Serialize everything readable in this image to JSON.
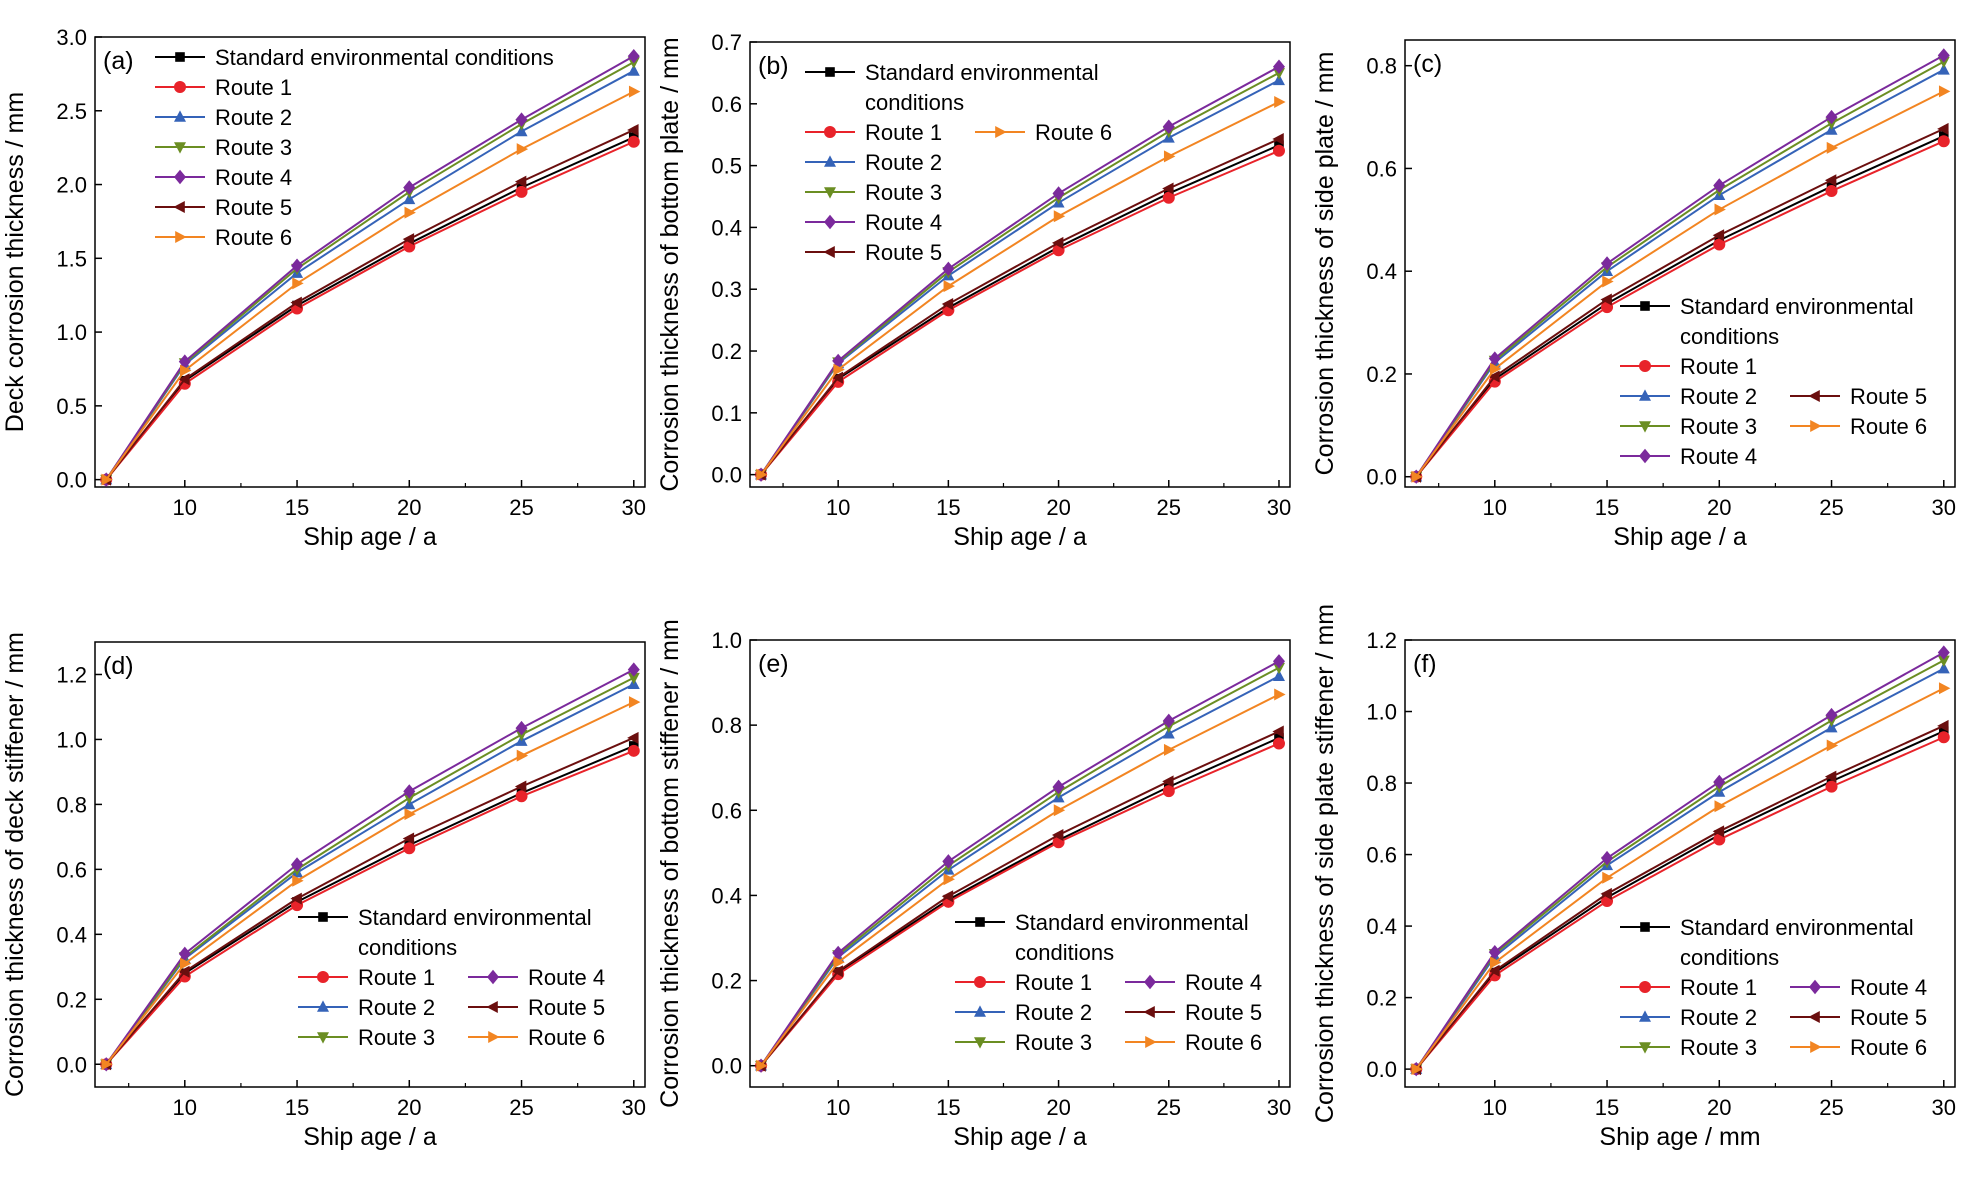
{
  "colors": {
    "standard": "#000000",
    "route1": "#e8232a",
    "route2": "#3563b8",
    "route3": "#6b8e23",
    "route4": "#7b2a9c",
    "route5": "#6b0f0f",
    "route6": "#f28522"
  },
  "chart_data": [
    {
      "type": "line",
      "panel_label": "(a)",
      "xlabel": "Ship age / a",
      "ylabel": "Deck corrosion thickness / mm",
      "xlim": [
        6,
        30.5
      ],
      "ylim": [
        -0.05,
        3.0
      ],
      "xticks": [
        10,
        15,
        20,
        25,
        30
      ],
      "yticks": [
        0.0,
        0.5,
        1.0,
        1.5,
        2.0,
        2.5,
        3.0
      ],
      "ytick_labels": [
        "0.0",
        "0.5",
        "1.0",
        "1.5",
        "2.0",
        "2.5",
        "3.0"
      ],
      "legend": "top-left",
      "x": [
        6.5,
        10,
        15,
        20,
        25,
        30
      ],
      "series": [
        {
          "name": "Standard environmental conditions",
          "color": "#000000",
          "marker": "square",
          "values": [
            0,
            0.67,
            1.18,
            1.6,
            1.98,
            2.32
          ]
        },
        {
          "name": "Route 1",
          "color": "#e8232a",
          "marker": "circle",
          "values": [
            0,
            0.65,
            1.16,
            1.58,
            1.95,
            2.29
          ]
        },
        {
          "name": "Route 2",
          "color": "#3563b8",
          "marker": "triangle-up",
          "values": [
            0,
            0.78,
            1.4,
            1.9,
            2.36,
            2.77
          ]
        },
        {
          "name": "Route 3",
          "color": "#6b8e23",
          "marker": "triangle-down",
          "values": [
            0,
            0.79,
            1.43,
            1.95,
            2.41,
            2.83
          ]
        },
        {
          "name": "Route 4",
          "color": "#7b2a9c",
          "marker": "diamond",
          "values": [
            0,
            0.8,
            1.45,
            1.98,
            2.44,
            2.87
          ]
        },
        {
          "name": "Route 5",
          "color": "#6b0f0f",
          "marker": "triangle-left",
          "values": [
            0,
            0.68,
            1.2,
            1.63,
            2.02,
            2.37
          ]
        },
        {
          "name": "Route 6",
          "color": "#f28522",
          "marker": "triangle-right",
          "values": [
            0,
            0.74,
            1.33,
            1.81,
            2.24,
            2.63
          ]
        }
      ]
    },
    {
      "type": "line",
      "panel_label": "(b)",
      "xlabel": "Ship age / a",
      "ylabel": "Corrosion thickness of bottom plate / mm",
      "xlim": [
        6,
        30.5
      ],
      "ylim": [
        -0.02,
        0.7
      ],
      "xticks": [
        10,
        15,
        20,
        25,
        30
      ],
      "yticks": [
        0.0,
        0.1,
        0.2,
        0.3,
        0.4,
        0.5,
        0.6,
        0.7
      ],
      "ytick_labels": [
        "0.0",
        "0.1",
        "0.2",
        "0.3",
        "0.4",
        "0.5",
        "0.6",
        "0.7"
      ],
      "legend": "top-left",
      "x": [
        6.5,
        10,
        15,
        20,
        25,
        30
      ],
      "series": [
        {
          "name": "Standard environmental conditions",
          "color": "#000000",
          "marker": "square",
          "values": [
            0,
            0.155,
            0.27,
            0.368,
            0.455,
            0.533
          ]
        },
        {
          "name": "Route 1",
          "color": "#e8232a",
          "marker": "circle",
          "values": [
            0,
            0.15,
            0.266,
            0.363,
            0.448,
            0.524
          ]
        },
        {
          "name": "Route 2",
          "color": "#3563b8",
          "marker": "triangle-up",
          "values": [
            0,
            0.18,
            0.322,
            0.44,
            0.545,
            0.638
          ]
        },
        {
          "name": "Route 3",
          "color": "#6b8e23",
          "marker": "triangle-down",
          "values": [
            0,
            0.182,
            0.328,
            0.448,
            0.555,
            0.65
          ]
        },
        {
          "name": "Route 4",
          "color": "#7b2a9c",
          "marker": "diamond",
          "values": [
            0,
            0.184,
            0.333,
            0.455,
            0.563,
            0.66
          ]
        },
        {
          "name": "Route 5",
          "color": "#6b0f0f",
          "marker": "triangle-left",
          "values": [
            0,
            0.157,
            0.276,
            0.375,
            0.463,
            0.543
          ]
        },
        {
          "name": "Route 6",
          "color": "#f28522",
          "marker": "triangle-right",
          "values": [
            0,
            0.17,
            0.305,
            0.418,
            0.515,
            0.603
          ]
        }
      ]
    },
    {
      "type": "line",
      "panel_label": "(c)",
      "xlabel": "Ship age / a",
      "ylabel": "Corrosion thickness of side plate / mm",
      "xlim": [
        6,
        30.5
      ],
      "ylim": [
        -0.02,
        0.85
      ],
      "xticks": [
        10,
        15,
        20,
        25,
        30
      ],
      "yticks": [
        0.0,
        0.2,
        0.4,
        0.6,
        0.8
      ],
      "ytick_labels": [
        "0.0",
        "0.2",
        "0.4",
        "0.6",
        "0.8"
      ],
      "legend": "bottom-right",
      "x": [
        6.5,
        10,
        15,
        20,
        25,
        30
      ],
      "series": [
        {
          "name": "Standard environmental conditions",
          "color": "#000000",
          "marker": "square",
          "values": [
            0,
            0.19,
            0.337,
            0.46,
            0.565,
            0.663
          ]
        },
        {
          "name": "Route 1",
          "color": "#e8232a",
          "marker": "circle",
          "values": [
            0,
            0.185,
            0.33,
            0.452,
            0.556,
            0.653
          ]
        },
        {
          "name": "Route 2",
          "color": "#3563b8",
          "marker": "triangle-up",
          "values": [
            0,
            0.222,
            0.4,
            0.548,
            0.675,
            0.792
          ]
        },
        {
          "name": "Route 3",
          "color": "#6b8e23",
          "marker": "triangle-down",
          "values": [
            0,
            0.226,
            0.408,
            0.558,
            0.688,
            0.808
          ]
        },
        {
          "name": "Route 4",
          "color": "#7b2a9c",
          "marker": "diamond",
          "values": [
            0,
            0.23,
            0.415,
            0.567,
            0.7,
            0.82
          ]
        },
        {
          "name": "Route 5",
          "color": "#6b0f0f",
          "marker": "triangle-left",
          "values": [
            0,
            0.195,
            0.345,
            0.47,
            0.577,
            0.677
          ]
        },
        {
          "name": "Route 6",
          "color": "#f28522",
          "marker": "triangle-right",
          "values": [
            0,
            0.21,
            0.38,
            0.52,
            0.64,
            0.75
          ]
        }
      ]
    },
    {
      "type": "line",
      "panel_label": "(d)",
      "xlabel": "Ship age / a",
      "ylabel": "Corrosion thickness of deck stiffener / mm",
      "xlim": [
        6,
        30.5
      ],
      "ylim": [
        -0.07,
        1.3
      ],
      "xticks": [
        10,
        15,
        20,
        25,
        30
      ],
      "yticks": [
        0.0,
        0.2,
        0.4,
        0.6,
        0.8,
        1.0,
        1.2
      ],
      "ytick_labels": [
        "0.0",
        "0.2",
        "0.4",
        "0.6",
        "0.8",
        "1.0",
        "1.2"
      ],
      "legend": "bottom-right",
      "x": [
        6.5,
        10,
        15,
        20,
        25,
        30
      ],
      "series": [
        {
          "name": "Standard environmental conditions",
          "color": "#000000",
          "marker": "square",
          "values": [
            0,
            0.28,
            0.5,
            0.675,
            0.835,
            0.98
          ]
        },
        {
          "name": "Route 1",
          "color": "#e8232a",
          "marker": "circle",
          "values": [
            0,
            0.27,
            0.49,
            0.665,
            0.825,
            0.965
          ]
        },
        {
          "name": "Route 2",
          "color": "#3563b8",
          "marker": "triangle-up",
          "values": [
            0,
            0.325,
            0.59,
            0.8,
            0.995,
            1.17
          ]
        },
        {
          "name": "Route 3",
          "color": "#6b8e23",
          "marker": "triangle-down",
          "values": [
            0,
            0.33,
            0.6,
            0.82,
            1.015,
            1.19
          ]
        },
        {
          "name": "Route 4",
          "color": "#7b2a9c",
          "marker": "diamond",
          "values": [
            0,
            0.34,
            0.615,
            0.84,
            1.035,
            1.215
          ]
        },
        {
          "name": "Route 5",
          "color": "#6b0f0f",
          "marker": "triangle-left",
          "values": [
            0,
            0.285,
            0.51,
            0.695,
            0.855,
            1.005
          ]
        },
        {
          "name": "Route 6",
          "color": "#f28522",
          "marker": "triangle-right",
          "values": [
            0,
            0.31,
            0.565,
            0.77,
            0.95,
            1.115
          ]
        }
      ]
    },
    {
      "type": "line",
      "panel_label": "(e)",
      "xlabel": "Ship age / a",
      "ylabel": "Corrosion thickness of bottom stiffener / mm",
      "xlim": [
        6,
        30.5
      ],
      "ylim": [
        -0.05,
        1.0
      ],
      "xticks": [
        10,
        15,
        20,
        25,
        30
      ],
      "yticks": [
        0.0,
        0.2,
        0.4,
        0.6,
        0.8,
        1.0
      ],
      "ytick_labels": [
        "0.0",
        "0.2",
        "0.4",
        "0.6",
        "0.8",
        "1.0"
      ],
      "legend": "bottom-right",
      "x": [
        6.5,
        10,
        15,
        20,
        25,
        30
      ],
      "series": [
        {
          "name": "Standard environmental conditions",
          "color": "#000000",
          "marker": "square",
          "values": [
            0,
            0.22,
            0.39,
            0.53,
            0.655,
            0.77
          ]
        },
        {
          "name": "Route 1",
          "color": "#e8232a",
          "marker": "circle",
          "values": [
            0,
            0.215,
            0.385,
            0.525,
            0.645,
            0.757
          ]
        },
        {
          "name": "Route 2",
          "color": "#3563b8",
          "marker": "triangle-up",
          "values": [
            0,
            0.255,
            0.46,
            0.63,
            0.78,
            0.915
          ]
        },
        {
          "name": "Route 3",
          "color": "#6b8e23",
          "marker": "triangle-down",
          "values": [
            0,
            0.26,
            0.47,
            0.643,
            0.797,
            0.935
          ]
        },
        {
          "name": "Route 4",
          "color": "#7b2a9c",
          "marker": "diamond",
          "values": [
            0,
            0.265,
            0.48,
            0.655,
            0.81,
            0.95
          ]
        },
        {
          "name": "Route 5",
          "color": "#6b0f0f",
          "marker": "triangle-left",
          "values": [
            0,
            0.222,
            0.398,
            0.542,
            0.668,
            0.785
          ]
        },
        {
          "name": "Route 6",
          "color": "#f28522",
          "marker": "triangle-right",
          "values": [
            0,
            0.243,
            0.438,
            0.6,
            0.742,
            0.872
          ]
        }
      ]
    },
    {
      "type": "line",
      "panel_label": "(f)",
      "xlabel": "Ship age / mm",
      "ylabel": "Corrosion thickness of side plate stiffener / mm",
      "xlim": [
        6,
        30.5
      ],
      "ylim": [
        -0.05,
        1.2
      ],
      "xticks": [
        10,
        15,
        20,
        25,
        30
      ],
      "yticks": [
        0.0,
        0.2,
        0.4,
        0.6,
        0.8,
        1.0,
        1.2
      ],
      "ytick_labels": [
        "0.0",
        "0.2",
        "0.4",
        "0.6",
        "0.8",
        "1.0",
        "1.2"
      ],
      "legend": "bottom-right",
      "x": [
        6.5,
        10,
        15,
        20,
        25,
        30
      ],
      "series": [
        {
          "name": "Standard environmental conditions",
          "color": "#000000",
          "marker": "square",
          "values": [
            0,
            0.27,
            0.48,
            0.655,
            0.805,
            0.945
          ]
        },
        {
          "name": "Route 1",
          "color": "#e8232a",
          "marker": "circle",
          "values": [
            0,
            0.262,
            0.47,
            0.642,
            0.79,
            0.928
          ]
        },
        {
          "name": "Route 2",
          "color": "#3563b8",
          "marker": "triangle-up",
          "values": [
            0,
            0.315,
            0.57,
            0.775,
            0.955,
            1.12
          ]
        },
        {
          "name": "Route 3",
          "color": "#6b8e23",
          "marker": "triangle-down",
          "values": [
            0,
            0.322,
            0.58,
            0.79,
            0.975,
            1.143
          ]
        },
        {
          "name": "Route 4",
          "color": "#7b2a9c",
          "marker": "diamond",
          "values": [
            0,
            0.327,
            0.59,
            0.803,
            0.99,
            1.165
          ]
        },
        {
          "name": "Route 5",
          "color": "#6b0f0f",
          "marker": "triangle-left",
          "values": [
            0,
            0.275,
            0.49,
            0.665,
            0.818,
            0.96
          ]
        },
        {
          "name": "Route 6",
          "color": "#f28522",
          "marker": "triangle-right",
          "values": [
            0,
            0.298,
            0.535,
            0.735,
            0.905,
            1.065
          ]
        }
      ]
    }
  ]
}
